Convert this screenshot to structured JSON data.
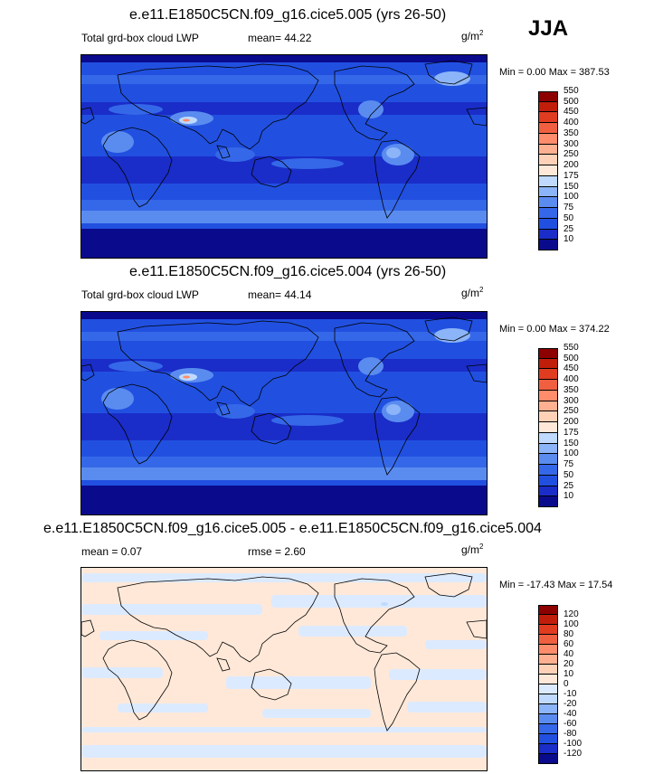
{
  "season": "JJA",
  "panels": [
    {
      "title": "e.e11.E1850C5CN.f09_g16.cice5.005 (yrs 26-50)",
      "left_label": "Total grd-box cloud LWP",
      "stat_label": "mean=",
      "stat_value": "44.22",
      "units_base": "g/m",
      "units_exp": "2",
      "minmax": "Min =   0.00 Max = 387.53",
      "field": "lwp",
      "colorbar": {
        "colors": [
          "#0a0a8c",
          "#1a2dc8",
          "#2150e0",
          "#3568e8",
          "#5a8cf0",
          "#8cb4f8",
          "#c0daff",
          "#ffe8d8",
          "#ffd2b8",
          "#ffb090",
          "#ff8c6a",
          "#f06040",
          "#e03c20",
          "#c01e0a",
          "#8c0000"
        ],
        "labels": [
          "10",
          "25",
          "50",
          "75",
          "100",
          "150",
          "175",
          "200",
          "250",
          "300",
          "350",
          "400",
          "450",
          "500",
          "550"
        ]
      }
    },
    {
      "title": "e.e11.E1850C5CN.f09_g16.cice5.004 (yrs 26-50)",
      "left_label": "Total grd-box cloud LWP",
      "stat_label": "mean=",
      "stat_value": "44.14",
      "units_base": "g/m",
      "units_exp": "2",
      "minmax": "Min =   0.00 Max = 374.22",
      "field": "lwp",
      "colorbar": {
        "colors": [
          "#0a0a8c",
          "#1a2dc8",
          "#2150e0",
          "#3568e8",
          "#5a8cf0",
          "#8cb4f8",
          "#c0daff",
          "#ffe8d8",
          "#ffd2b8",
          "#ffb090",
          "#ff8c6a",
          "#f06040",
          "#e03c20",
          "#c01e0a",
          "#8c0000"
        ],
        "labels": [
          "10",
          "25",
          "50",
          "75",
          "100",
          "150",
          "175",
          "200",
          "250",
          "300",
          "350",
          "400",
          "450",
          "500",
          "550"
        ]
      }
    },
    {
      "title": "e.e11.E1850C5CN.f09_g16.cice5.005 - e.e11.E1850C5CN.f09_g16.cice5.004",
      "left_label": "mean =   0.07",
      "stat_label": "rmse =",
      "stat_value": "2.60",
      "units_base": "g/m",
      "units_exp": "2",
      "minmax": "Min = -17.43 Max =  17.54",
      "field": "diff",
      "colorbar": {
        "colors": [
          "#0a0a8c",
          "#1a2dc8",
          "#2150e0",
          "#3568e8",
          "#5a8cf0",
          "#8cb4f8",
          "#c0daff",
          "#dceaff",
          "#ffe8d8",
          "#ffd2b8",
          "#ffb090",
          "#ff8c6a",
          "#f06040",
          "#e03c20",
          "#c01e0a",
          "#8c0000"
        ],
        "labels": [
          "-120",
          "-100",
          "-80",
          "-60",
          "-40",
          "-20",
          "-10",
          "0",
          "10",
          "20",
          "40",
          "60",
          "80",
          "100",
          "120"
        ]
      }
    }
  ],
  "chart_data": [
    {
      "type": "heatmap",
      "title": "e.e11.E1850C5CN.f09_g16.cice5.005 (yrs 26-50)",
      "variable": "Total grd-box cloud LWP",
      "units": "g/m2",
      "mean": 44.22,
      "min": 0.0,
      "max": 387.53,
      "levels": [
        10,
        25,
        50,
        75,
        100,
        150,
        175,
        200,
        250,
        300,
        350,
        400,
        450,
        500,
        550
      ]
    },
    {
      "type": "heatmap",
      "title": "e.e11.E1850C5CN.f09_g16.cice5.004 (yrs 26-50)",
      "variable": "Total grd-box cloud LWP",
      "units": "g/m2",
      "mean": 44.14,
      "min": 0.0,
      "max": 374.22,
      "levels": [
        10,
        25,
        50,
        75,
        100,
        150,
        175,
        200,
        250,
        300,
        350,
        400,
        450,
        500,
        550
      ]
    },
    {
      "type": "heatmap",
      "title": "e.e11.E1850C5CN.f09_g16.cice5.005 - e.e11.E1850C5CN.f09_g16.cice5.004",
      "units": "g/m2",
      "mean": 0.07,
      "rmse": 2.6,
      "min": -17.43,
      "max": 17.54,
      "levels": [
        -120,
        -100,
        -80,
        -60,
        -40,
        -20,
        -10,
        0,
        10,
        20,
        40,
        60,
        80,
        100,
        120
      ]
    }
  ]
}
